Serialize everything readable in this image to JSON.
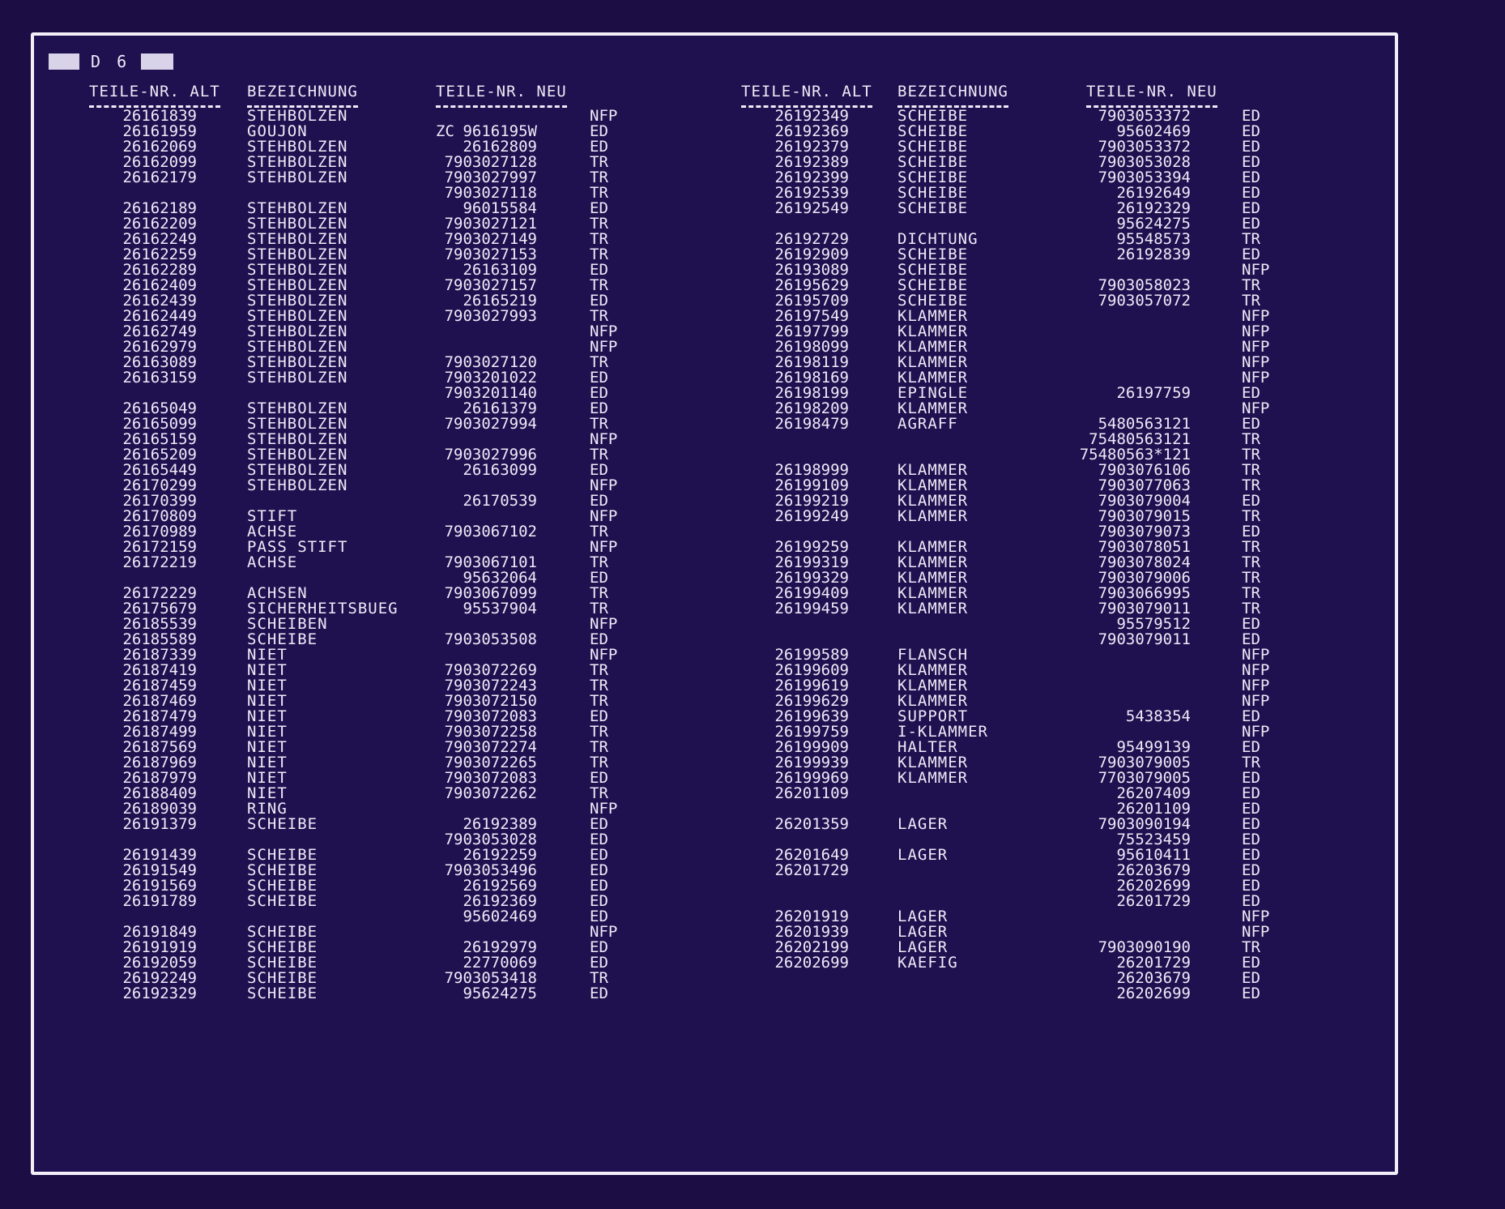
{
  "header": {
    "code": "D 6"
  },
  "columns": {
    "alt": "TEILE-NR. ALT",
    "bez": "BEZEICHNUNG",
    "neu": "TEILE-NR. NEU"
  },
  "left_rows": [
    {
      "alt": "26161839",
      "bez": "STEHBOLZEN",
      "neu": "",
      "st": "NFP"
    },
    {
      "alt": "26161959",
      "bez": "GOUJON",
      "pre": "ZC",
      "neu": "9616195W",
      "st": "ED"
    },
    {
      "alt": "26162069",
      "bez": "STEHBOLZEN",
      "neu": "26162809",
      "st": "ED"
    },
    {
      "alt": "26162099",
      "bez": "STEHBOLZEN",
      "neu": "7903027128",
      "st": "TR"
    },
    {
      "alt": "26162179",
      "bez": "STEHBOLZEN",
      "neu": "7903027997",
      "st": "TR"
    },
    {
      "alt": "",
      "bez": "",
      "neu": "7903027118",
      "st": "TR"
    },
    {
      "alt": "26162189",
      "bez": "STEHBOLZEN",
      "neu": "96015584",
      "st": "ED"
    },
    {
      "alt": "26162209",
      "bez": "STEHBOLZEN",
      "neu": "7903027121",
      "st": "TR"
    },
    {
      "alt": "26162249",
      "bez": "STEHBOLZEN",
      "neu": "7903027149",
      "st": "TR"
    },
    {
      "alt": "26162259",
      "bez": "STEHBOLZEN",
      "neu": "7903027153",
      "st": "TR"
    },
    {
      "alt": "26162289",
      "bez": "STEHBOLZEN",
      "neu": "26163109",
      "st": "ED"
    },
    {
      "alt": "26162409",
      "bez": "STEHBOLZEN",
      "neu": "7903027157",
      "st": "TR"
    },
    {
      "alt": "26162439",
      "bez": "STEHBOLZEN",
      "neu": "26165219",
      "st": "ED"
    },
    {
      "alt": "26162449",
      "bez": "STEHBOLZEN",
      "neu": "7903027993",
      "st": "TR"
    },
    {
      "alt": "26162749",
      "bez": "STEHBOLZEN",
      "neu": "",
      "st": "NFP"
    },
    {
      "alt": "26162979",
      "bez": "STEHBOLZEN",
      "neu": "",
      "st": "NFP"
    },
    {
      "alt": "26163089",
      "bez": "STEHBOLZEN",
      "neu": "7903027120",
      "st": "TR"
    },
    {
      "alt": "26163159",
      "bez": "STEHBOLZEN",
      "neu": "7903201022",
      "st": "ED"
    },
    {
      "alt": "",
      "bez": "",
      "neu": "7903201140",
      "st": "ED"
    },
    {
      "alt": "26165049",
      "bez": "STEHBOLZEN",
      "neu": "26161379",
      "st": "ED"
    },
    {
      "alt": "26165099",
      "bez": "STEHBOLZEN",
      "neu": "7903027994",
      "st": "TR"
    },
    {
      "alt": "26165159",
      "bez": "STEHBOLZEN",
      "neu": "",
      "st": "NFP"
    },
    {
      "alt": "26165209",
      "bez": "STEHBOLZEN",
      "neu": "7903027996",
      "st": "TR"
    },
    {
      "alt": "26165449",
      "bez": "STEHBOLZEN",
      "neu": "26163099",
      "st": "ED"
    },
    {
      "alt": "26170299",
      "bez": "STEHBOLZEN",
      "neu": "",
      "st": "NFP"
    },
    {
      "alt": "26170399",
      "bez": "",
      "neu": "26170539",
      "st": "ED"
    },
    {
      "alt": "26170809",
      "bez": "STIFT",
      "neu": "",
      "st": "NFP"
    },
    {
      "alt": "26170989",
      "bez": "ACHSE",
      "neu": "7903067102",
      "st": "TR"
    },
    {
      "alt": "26172159",
      "bez": "PASS STIFT",
      "neu": "",
      "st": "NFP"
    },
    {
      "alt": "26172219",
      "bez": "ACHSE",
      "neu": "7903067101",
      "st": "TR"
    },
    {
      "alt": "",
      "bez": "",
      "neu": "95632064",
      "st": "ED"
    },
    {
      "alt": "26172229",
      "bez": "ACHSEN",
      "neu": "7903067099",
      "st": "TR"
    },
    {
      "alt": "26175679",
      "bez": "SICHERHEITSBUEG",
      "neu": "95537904",
      "st": "TR"
    },
    {
      "alt": "26185539",
      "bez": "SCHEIBEN",
      "neu": "",
      "st": "NFP"
    },
    {
      "alt": "26185589",
      "bez": "SCHEIBE",
      "neu": "7903053508",
      "st": "ED"
    },
    {
      "alt": "26187339",
      "bez": "NIET",
      "neu": "",
      "st": "NFP"
    },
    {
      "alt": "26187419",
      "bez": "NIET",
      "neu": "7903072269",
      "st": "TR"
    },
    {
      "alt": "26187459",
      "bez": "NIET",
      "neu": "7903072243",
      "st": "TR"
    },
    {
      "alt": "26187469",
      "bez": "NIET",
      "neu": "7903072150",
      "st": "TR"
    },
    {
      "alt": "26187479",
      "bez": "NIET",
      "neu": "7903072083",
      "st": "ED"
    },
    {
      "alt": "26187499",
      "bez": "NIET",
      "neu": "7903072258",
      "st": "TR"
    },
    {
      "alt": "26187569",
      "bez": "NIET",
      "neu": "7903072274",
      "st": "TR"
    },
    {
      "alt": "26187969",
      "bez": "NIET",
      "neu": "7903072265",
      "st": "TR"
    },
    {
      "alt": "26187979",
      "bez": "NIET",
      "neu": "7903072083",
      "st": "ED"
    },
    {
      "alt": "26188409",
      "bez": "NIET",
      "neu": "7903072262",
      "st": "TR"
    },
    {
      "alt": "26189039",
      "bez": "RING",
      "neu": "",
      "st": "NFP"
    },
    {
      "alt": "26191379",
      "bez": "SCHEIBE",
      "neu": "26192389",
      "st": "ED"
    },
    {
      "alt": "",
      "bez": "",
      "neu": "7903053028",
      "st": "ED"
    },
    {
      "alt": "26191439",
      "bez": "SCHEIBE",
      "neu": "26192259",
      "st": "ED"
    },
    {
      "alt": "26191549",
      "bez": "SCHEIBE",
      "neu": "7903053496",
      "st": "ED"
    },
    {
      "alt": "26191569",
      "bez": "SCHEIBE",
      "neu": "26192569",
      "st": "ED"
    },
    {
      "alt": "26191789",
      "bez": "SCHEIBE",
      "neu": "26192369",
      "st": "ED"
    },
    {
      "alt": "",
      "bez": "",
      "neu": "95602469",
      "st": "ED"
    },
    {
      "alt": "26191849",
      "bez": "SCHEIBE",
      "neu": "",
      "st": "NFP"
    },
    {
      "alt": "26191919",
      "bez": "SCHEIBE",
      "neu": "26192979",
      "st": "ED"
    },
    {
      "alt": "26192059",
      "bez": "SCHEIBE",
      "neu": "22770069",
      "st": "ED"
    },
    {
      "alt": "26192249",
      "bez": "SCHEIBE",
      "neu": "7903053418",
      "st": "TR"
    },
    {
      "alt": "26192329",
      "bez": "SCHEIBE",
      "neu": "95624275",
      "st": "ED"
    }
  ],
  "right_rows": [
    {
      "alt": "26192349",
      "bez": "SCHEIBE",
      "neu": "7903053372",
      "st": "ED"
    },
    {
      "alt": "26192369",
      "bez": "SCHEIBE",
      "neu": "95602469",
      "st": "ED"
    },
    {
      "alt": "26192379",
      "bez": "SCHEIBE",
      "neu": "7903053372",
      "st": "ED"
    },
    {
      "alt": "26192389",
      "bez": "SCHEIBE",
      "neu": "7903053028",
      "st": "ED"
    },
    {
      "alt": "26192399",
      "bez": "SCHEIBE",
      "neu": "7903053394",
      "st": "ED"
    },
    {
      "alt": "26192539",
      "bez": "SCHEIBE",
      "neu": "26192649",
      "st": "ED"
    },
    {
      "alt": "26192549",
      "bez": "SCHEIBE",
      "neu": "26192329",
      "st": "ED"
    },
    {
      "alt": "",
      "bez": "",
      "neu": "95624275",
      "st": "ED"
    },
    {
      "alt": "26192729",
      "bez": "DICHTUNG",
      "neu": "95548573",
      "st": "TR"
    },
    {
      "alt": "26192909",
      "bez": "SCHEIBE",
      "neu": "26192839",
      "st": "ED"
    },
    {
      "alt": "26193089",
      "bez": "SCHEIBE",
      "neu": "",
      "st": "NFP"
    },
    {
      "alt": "26195629",
      "bez": "SCHEIBE",
      "neu": "7903058023",
      "st": "TR"
    },
    {
      "alt": "26195709",
      "bez": "SCHEIBE",
      "neu": "7903057072",
      "st": "TR"
    },
    {
      "alt": "26197549",
      "bez": "KLAMMER",
      "neu": "",
      "st": "NFP"
    },
    {
      "alt": "26197799",
      "bez": "KLAMMER",
      "neu": "",
      "st": "NFP"
    },
    {
      "alt": "26198099",
      "bez": "KLAMMER",
      "neu": "",
      "st": "NFP"
    },
    {
      "alt": "26198119",
      "bez": "KLAMMER",
      "neu": "",
      "st": "NFP"
    },
    {
      "alt": "26198169",
      "bez": "KLAMMER",
      "neu": "",
      "st": "NFP"
    },
    {
      "alt": "26198199",
      "bez": "EPINGLE",
      "neu": "26197759",
      "st": "ED"
    },
    {
      "alt": "26198209",
      "bez": "KLAMMER",
      "neu": "",
      "st": "NFP"
    },
    {
      "alt": "26198479",
      "bez": "AGRAFF",
      "neu": "5480563121",
      "st": "ED"
    },
    {
      "alt": "",
      "bez": "",
      "neu": "75480563121",
      "st": "TR"
    },
    {
      "alt": "",
      "bez": "",
      "neu": "75480563*121",
      "st": "TR"
    },
    {
      "alt": "26198999",
      "bez": "KLAMMER",
      "neu": "7903076106",
      "st": "TR"
    },
    {
      "alt": "26199109",
      "bez": "KLAMMER",
      "neu": "7903077063",
      "st": "TR"
    },
    {
      "alt": "26199219",
      "bez": "KLAMMER",
      "neu": "7903079004",
      "st": "ED"
    },
    {
      "alt": "26199249",
      "bez": "KLAMMER",
      "neu": "7903079015",
      "st": "TR"
    },
    {
      "alt": "",
      "bez": "",
      "neu": "7903079073",
      "st": "ED"
    },
    {
      "alt": "26199259",
      "bez": "KLAMMER",
      "neu": "7903078051",
      "st": "TR"
    },
    {
      "alt": "26199319",
      "bez": "KLAMMER",
      "neu": "7903078024",
      "st": "TR"
    },
    {
      "alt": "26199329",
      "bez": "KLAMMER",
      "neu": "7903079006",
      "st": "TR"
    },
    {
      "alt": "26199409",
      "bez": "KLAMMER",
      "neu": "7903066995",
      "st": "TR"
    },
    {
      "alt": "26199459",
      "bez": "KLAMMER",
      "neu": "7903079011",
      "st": "TR"
    },
    {
      "alt": "",
      "bez": "",
      "neu": "95579512",
      "st": "ED"
    },
    {
      "alt": "",
      "bez": "",
      "neu": "7903079011",
      "st": "ED"
    },
    {
      "alt": "26199589",
      "bez": "FLANSCH",
      "neu": "",
      "st": "NFP"
    },
    {
      "alt": "26199609",
      "bez": "KLAMMER",
      "neu": "",
      "st": "NFP"
    },
    {
      "alt": "26199619",
      "bez": "KLAMMER",
      "neu": "",
      "st": "NFP"
    },
    {
      "alt": "26199629",
      "bez": "KLAMMER",
      "neu": "",
      "st": "NFP"
    },
    {
      "alt": "26199639",
      "bez": "SUPPORT",
      "neu": "5438354",
      "st": "ED"
    },
    {
      "alt": "26199759",
      "bez": "I-KLAMMER",
      "neu": "",
      "st": "NFP"
    },
    {
      "alt": "26199909",
      "bez": "HALTER",
      "neu": "95499139",
      "st": "ED"
    },
    {
      "alt": "26199939",
      "bez": "KLAMMER",
      "neu": "7903079005",
      "st": "TR"
    },
    {
      "alt": "26199969",
      "bez": "KLAMMER",
      "neu": "7703079005",
      "st": "ED"
    },
    {
      "alt": "26201109",
      "bez": "",
      "neu": "26207409",
      "st": "ED"
    },
    {
      "alt": "",
      "bez": "",
      "neu": "26201109",
      "st": "ED"
    },
    {
      "alt": "26201359",
      "bez": "LAGER",
      "neu": "7903090194",
      "st": "ED"
    },
    {
      "alt": "",
      "bez": "",
      "neu": "75523459",
      "st": "ED"
    },
    {
      "alt": "26201649",
      "bez": "LAGER",
      "neu": "95610411",
      "st": "ED"
    },
    {
      "alt": "26201729",
      "bez": "",
      "neu": "26203679",
      "st": "ED"
    },
    {
      "alt": "",
      "bez": "",
      "neu": "26202699",
      "st": "ED"
    },
    {
      "alt": "",
      "bez": "",
      "neu": "26201729",
      "st": "ED"
    },
    {
      "alt": "26201919",
      "bez": "LAGER",
      "neu": "",
      "st": "NFP"
    },
    {
      "alt": "26201939",
      "bez": "LAGER",
      "neu": "",
      "st": "NFP"
    },
    {
      "alt": "26202199",
      "bez": "LAGER",
      "neu": "7903090190",
      "st": "TR"
    },
    {
      "alt": "26202699",
      "bez": "KAEFIG",
      "neu": "26201729",
      "st": "ED"
    },
    {
      "alt": "",
      "bez": "",
      "neu": "26203679",
      "st": "ED"
    },
    {
      "alt": "",
      "bez": "",
      "neu": "26202699",
      "st": "ED"
    }
  ]
}
